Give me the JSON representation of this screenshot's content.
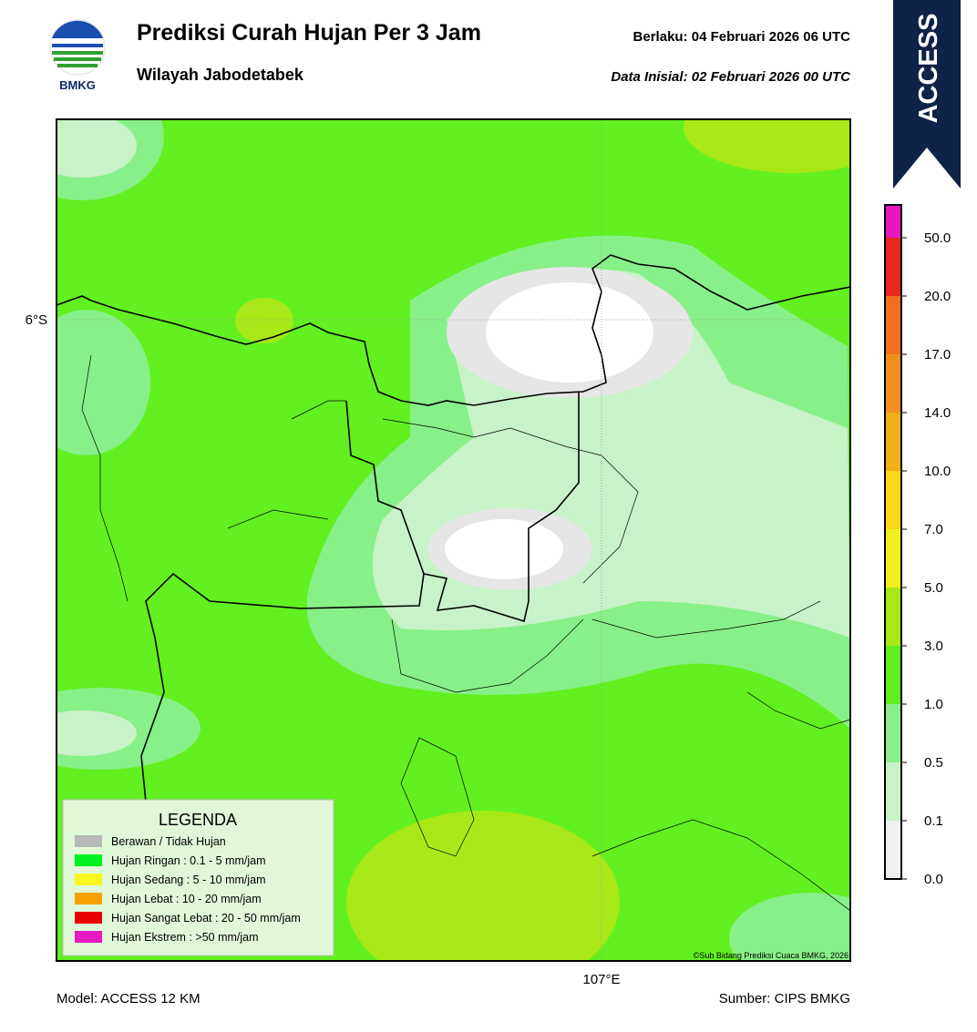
{
  "header": {
    "logo_text": "BMKG",
    "title": "Prediksi Curah Hujan Per 3 Jam",
    "subtitle": "Wilayah Jabodetabek",
    "valid": "Berlaku:  04 Februari 2026 06 UTC",
    "init": "Data Inisial:  02 Februari 2026 00 UTC",
    "model_badge": "ACCESS"
  },
  "map": {
    "lat_label": "6°S",
    "lon_label": "107°E",
    "credit": "©Sub Bidang Prediksi Cuaca BMKG, 2026"
  },
  "legend": {
    "title": "LEGENDA",
    "items": [
      {
        "label": "Berawan / Tidak Hujan",
        "color": "#b8b8b8"
      },
      {
        "label": "Hujan Ringan : 0.1 - 5 mm/jam",
        "color": "#00f020"
      },
      {
        "label": "Hujan Sedang : 5 - 10 mm/jam",
        "color": "#f8f820"
      },
      {
        "label": "Hujan Lebat : 10 - 20 mm/jam",
        "color": "#f8a000"
      },
      {
        "label": "Hujan Sangat Lebat : 20 - 50 mm/jam",
        "color": "#e80000"
      },
      {
        "label": "Hujan Ekstrem : >50 mm/jam",
        "color": "#e818c0"
      }
    ]
  },
  "colorbar": {
    "ticks": [
      {
        "value": 0,
        "label": "0.0"
      },
      0.1,
      0.5,
      {
        "value": 1,
        "label": "1.0"
      },
      {
        "value": 3,
        "label": "3.0"
      },
      {
        "value": 5,
        "label": "5.0"
      },
      {
        "value": 7,
        "label": "7.0"
      },
      {
        "value": 10,
        "label": "10.0"
      },
      {
        "value": 14,
        "label": "14.0"
      },
      {
        "value": 17,
        "label": "17.0"
      },
      {
        "value": 20,
        "label": "20.0"
      },
      {
        "value": 50,
        "label": "50.0"
      }
    ],
    "colors": [
      "#f0f0f0",
      "#c8f2c8",
      "#88f088",
      "#60f020",
      "#a8e818",
      "#f0f020",
      "#f8d818",
      "#f0b018",
      "#f09020",
      "#f07020",
      "#e82818",
      "#e818c0"
    ]
  },
  "footer": {
    "model": "Model: ACCESS 12 KM",
    "source": "Sumber: CIPS BMKG"
  }
}
